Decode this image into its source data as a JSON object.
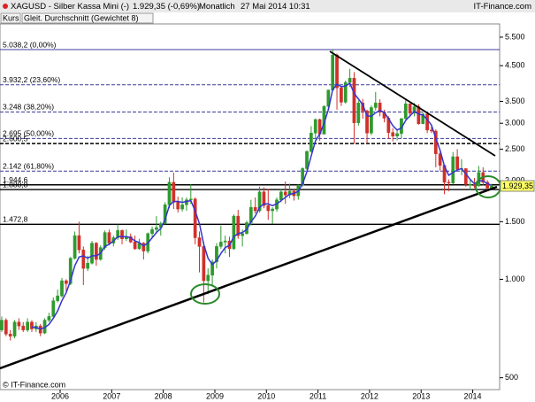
{
  "chart_data": {
    "type": "candlestick",
    "title": "XAGUSD - Silber Kassa Mini (-)",
    "quote": "1.929,35 (-0,69%)",
    "period": "Monatlich",
    "timestamp": "27 Mai 2014 10:31",
    "source": "IT-Finance.com",
    "footer": "© IT-Finance.com",
    "categories": [
      null,
      null,
      null,
      null,
      null,
      null,
      null,
      null,
      null,
      null,
      null,
      null,
      null,
      null,
      "2006",
      null,
      null,
      null,
      null,
      null,
      null,
      null,
      null,
      null,
      null,
      null,
      "2007",
      null,
      null,
      null,
      null,
      null,
      null,
      null,
      null,
      null,
      null,
      null,
      "2008",
      null,
      null,
      null,
      null,
      null,
      null,
      null,
      null,
      null,
      null,
      null,
      "2009",
      null,
      null,
      null,
      null,
      null,
      null,
      null,
      null,
      null,
      null,
      null,
      "2010",
      null,
      null,
      null,
      null,
      null,
      null,
      null,
      null,
      null,
      null,
      null,
      "2011",
      null,
      null,
      null,
      null,
      null,
      null,
      null,
      null,
      null,
      null,
      null,
      "2012",
      null,
      null,
      null,
      null,
      null,
      null,
      null,
      null,
      null,
      null,
      null,
      "2013",
      null,
      null,
      null,
      null,
      null,
      null,
      null,
      null,
      null,
      null,
      null,
      "2014",
      null,
      null,
      null,
      null
    ],
    "series": [
      {
        "name": "Kurs",
        "type": "candlestick",
        "up_color": "#2e9a2e",
        "down_color": "#d0302a",
        "open": [
          700,
          750,
          680,
          670,
          740,
          720,
          700,
          740,
          705,
          720,
          685,
          750,
          770,
          860,
          890,
          990,
          970,
          1160,
          1360,
          1230,
          1080,
          1120,
          1290,
          1150,
          1250,
          1390,
          1290,
          1340,
          1410,
          1330,
          1350,
          1300,
          1240,
          1290,
          1220,
          1380,
          1420,
          1440,
          1480,
          1690,
          1980,
          1720,
          1640,
          1690,
          1750,
          1760,
          1340,
          1260,
          990,
          1030,
          1130,
          1260,
          1300,
          1310,
          1240,
          1560,
          1360,
          1380,
          1490,
          1660,
          1620,
          1850,
          1680,
          1620,
          1640,
          1750,
          1850,
          1810,
          1860,
          1800,
          1940,
          2180,
          2460,
          2800,
          3080,
          2780,
          3380,
          3790,
          4850,
          3850,
          3480,
          4000,
          4120,
          3010,
          3460,
          3270,
          2800,
          3350,
          3460,
          3240,
          3110,
          2810,
          2740,
          2790,
          3100,
          3440,
          3220,
          3370,
          2990,
          3200,
          2860,
          2840,
          2420,
          2230,
          1980,
          1970,
          2370,
          2170,
          2180,
          1950,
          1950,
          1930,
          2120,
          1980,
          1900
        ],
        "high": [
          770,
          760,
          700,
          750,
          760,
          740,
          760,
          750,
          740,
          730,
          760,
          790,
          880,
          930,
          1010,
          1000,
          1170,
          1400,
          1500,
          1260,
          1180,
          1310,
          1300,
          1270,
          1410,
          1420,
          1360,
          1470,
          1420,
          1420,
          1380,
          1360,
          1330,
          1300,
          1390,
          1450,
          1560,
          1500,
          1720,
          2050,
          2120,
          1790,
          1780,
          1780,
          1950,
          1780,
          1400,
          1300,
          1080,
          1150,
          1290,
          1460,
          1360,
          1350,
          1580,
          1630,
          1420,
          1510,
          1750,
          1780,
          1920,
          1910,
          1890,
          1660,
          1780,
          1890,
          1990,
          1960,
          1890,
          1950,
          2200,
          2480,
          2940,
          3100,
          3100,
          3400,
          3800,
          5040,
          4900,
          3900,
          4050,
          4400,
          4300,
          3520,
          3560,
          3300,
          3400,
          3740,
          3550,
          3300,
          3150,
          2900,
          2880,
          3110,
          3530,
          3450,
          3460,
          3430,
          3240,
          3230,
          2940,
          2870,
          2460,
          2240,
          2020,
          2450,
          2500,
          2330,
          2180,
          2020,
          2040,
          2220,
          2200,
          2010,
          1960
        ],
        "low": [
          690,
          670,
          650,
          660,
          700,
          690,
          690,
          690,
          690,
          670,
          680,
          740,
          760,
          850,
          880,
          920,
          960,
          1150,
          1200,
          960,
          1060,
          1110,
          1100,
          1140,
          1230,
          1270,
          1260,
          1320,
          1280,
          1310,
          1290,
          1230,
          1230,
          1150,
          1200,
          1340,
          1380,
          1360,
          1470,
          1650,
          1640,
          1600,
          1610,
          1620,
          1700,
          1280,
          1050,
          850,
          900,
          960,
          1080,
          1240,
          1200,
          1170,
          1230,
          1330,
          1260,
          1370,
          1460,
          1590,
          1600,
          1650,
          1520,
          1480,
          1610,
          1720,
          1700,
          1770,
          1740,
          1750,
          1920,
          2150,
          2440,
          2700,
          2650,
          2770,
          3300,
          3780,
          3300,
          3390,
          3440,
          3870,
          2600,
          2950,
          3100,
          2600,
          2760,
          3280,
          3150,
          3020,
          2690,
          2640,
          2660,
          2700,
          3080,
          3130,
          3150,
          2970,
          2980,
          2800,
          2800,
          2200,
          2150,
          1820,
          1860,
          1950,
          2140,
          2080,
          1920,
          1870,
          1900,
          1920,
          1940,
          1870,
          1880
        ],
        "close": [
          750,
          680,
          670,
          740,
          720,
          700,
          740,
          705,
          720,
          685,
          750,
          770,
          860,
          890,
          990,
          970,
          1160,
          1360,
          1230,
          1080,
          1120,
          1290,
          1150,
          1250,
          1390,
          1290,
          1340,
          1410,
          1330,
          1350,
          1300,
          1240,
          1290,
          1220,
          1380,
          1420,
          1440,
          1480,
          1690,
          1980,
          1720,
          1640,
          1690,
          1750,
          1760,
          1340,
          1260,
          990,
          1030,
          1130,
          1260,
          1300,
          1310,
          1240,
          1560,
          1360,
          1380,
          1490,
          1660,
          1620,
          1850,
          1680,
          1620,
          1640,
          1750,
          1850,
          1810,
          1860,
          1800,
          1940,
          2180,
          2460,
          2800,
          3080,
          2780,
          3380,
          3790,
          4850,
          3850,
          3480,
          4000,
          4120,
          3010,
          3460,
          3270,
          2800,
          3350,
          3460,
          3240,
          3110,
          2810,
          2740,
          2790,
          3100,
          3440,
          3220,
          3370,
          2990,
          3200,
          2860,
          2840,
          2420,
          2230,
          1980,
          1970,
          2370,
          2170,
          2180,
          1950,
          1950,
          1930,
          2120,
          1980,
          1900,
          1929.35
        ]
      },
      {
        "name": "Gleit. Durchschnitt (Gewichtet 8)",
        "type": "line",
        "color": "#3434d0",
        "values": [
          null,
          null,
          null,
          null,
          null,
          null,
          null,
          715,
          712,
          705,
          712,
          728,
          760,
          800,
          860,
          910,
          990,
          1100,
          1170,
          1180,
          1160,
          1180,
          1180,
          1200,
          1260,
          1280,
          1310,
          1350,
          1350,
          1350,
          1340,
          1310,
          1295,
          1265,
          1290,
          1340,
          1390,
          1430,
          1520,
          1680,
          1730,
          1730,
          1720,
          1730,
          1740,
          1620,
          1480,
          1280,
          1160,
          1110,
          1140,
          1200,
          1250,
          1270,
          1350,
          1380,
          1390,
          1420,
          1500,
          1560,
          1660,
          1700,
          1700,
          1680,
          1700,
          1740,
          1780,
          1820,
          1830,
          1860,
          1960,
          2130,
          2380,
          2650,
          2780,
          3000,
          3300,
          3800,
          3950,
          3880,
          3900,
          3980,
          3700,
          3560,
          3420,
          3160,
          3150,
          3230,
          3280,
          3240,
          3100,
          2950,
          2860,
          2900,
          3060,
          3160,
          3260,
          3200,
          3180,
          3080,
          2960,
          2700,
          2480,
          2220,
          2080,
          2120,
          2160,
          2180,
          2100,
          2020,
          1960,
          2000,
          2000,
          1960,
          1940
        ]
      }
    ],
    "log": true,
    "ylim": [
      460,
      6000
    ],
    "yticks": [
      {
        "value": 5500,
        "label": "5.500"
      },
      {
        "value": 4500,
        "label": "4.500"
      },
      {
        "value": 3500,
        "label": "3.500"
      },
      {
        "value": 3000,
        "label": "3.000"
      },
      {
        "value": 2500,
        "label": "2.500"
      },
      {
        "value": 2000,
        "label": "2.000"
      },
      {
        "value": 1500,
        "label": "1.500"
      },
      {
        "value": 1000,
        "label": "1.000"
      },
      500
    ],
    "levels": [
      {
        "value": 5038.2,
        "label": "5.038,2 (0,00%)",
        "style": "solid",
        "color": "#3c3c9c"
      },
      {
        "value": 3932.2,
        "label": "3.932,2 (23,60%)",
        "style": "dashed",
        "color": "#3c3c9c"
      },
      {
        "value": 3248,
        "label": "3.248 (38,20%)",
        "style": "dashed",
        "color": "#3c3c9c"
      },
      {
        "value": 2695,
        "label": "2.695 (50,00%)",
        "style": "dashed",
        "color": "#3c3c9c"
      },
      {
        "value": 2600.5,
        "label": "2.600,5",
        "style": "dashed",
        "color": "#000000"
      },
      {
        "value": 2142,
        "label": "2.142 (61,80%)",
        "style": "dashed",
        "color": "#3c3c9c"
      },
      {
        "value": 1944.6,
        "label": "1.944,6",
        "style": "solid",
        "color": "#000000"
      },
      {
        "value": 1880.8,
        "label": "1.880,8",
        "style": "solid",
        "color": "#000000"
      },
      {
        "value": 1472.8,
        "label": "1.472,8",
        "style": "solid",
        "color": "#000000"
      }
    ],
    "last": {
      "value": 1929.35,
      "label": "1.929,35",
      "color": "#ffff66"
    }
  }
}
